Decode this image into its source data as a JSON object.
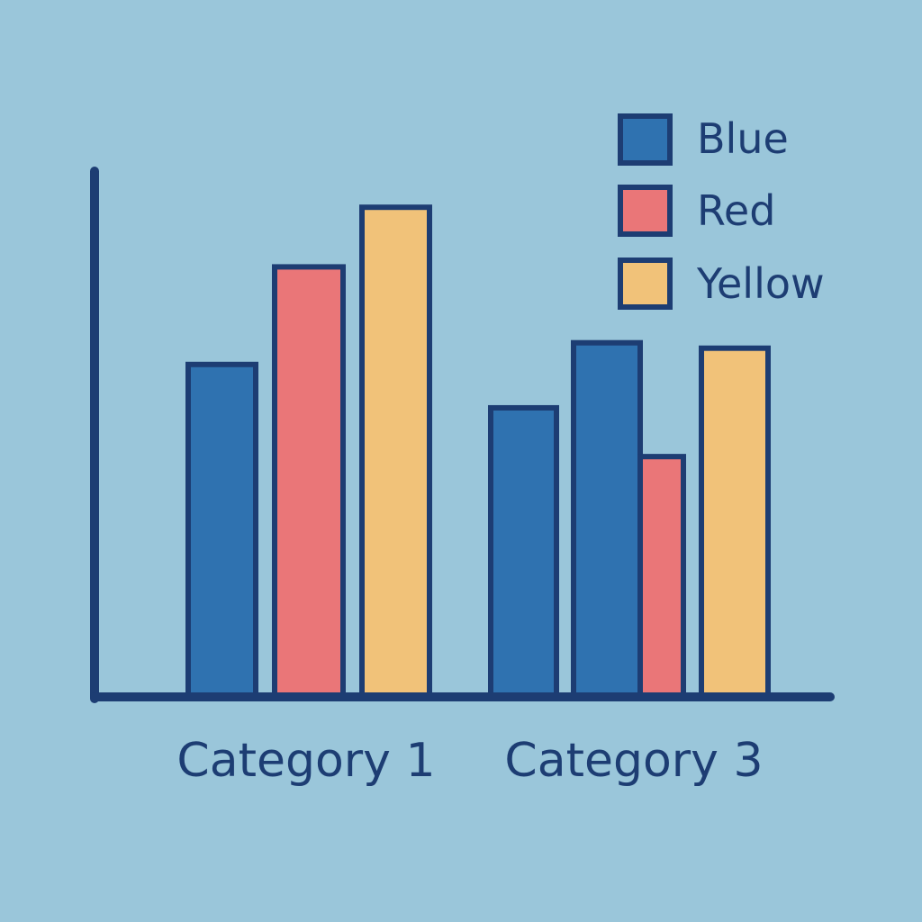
{
  "chart_data": {
    "type": "bar",
    "title": "",
    "xlabel": "",
    "ylabel": "",
    "ylim": [
      0,
      100
    ],
    "grid": false,
    "legend_position": "top-right",
    "groups": [
      {
        "label": "Category 1",
        "bars": [
          {
            "series": "Blue",
            "value": 61
          },
          {
            "series": "Red",
            "value": 79
          },
          {
            "series": "Yellow",
            "value": 90
          }
        ]
      },
      {
        "label": "Category 3",
        "bars": [
          {
            "series": "Blue",
            "value": 53
          },
          {
            "series": "Blue",
            "value": 65
          },
          {
            "series": "Red",
            "value": 44
          },
          {
            "series": "Yellow",
            "value": 64
          }
        ]
      }
    ],
    "legend": [
      {
        "name": "Blue",
        "color": "#2f72b0"
      },
      {
        "name": "Red",
        "color": "#ea7678"
      },
      {
        "name": "Yellow",
        "color": "#f1c279"
      }
    ],
    "colors": {
      "background": "#9ac6da",
      "outline": "#1d3d73"
    }
  }
}
